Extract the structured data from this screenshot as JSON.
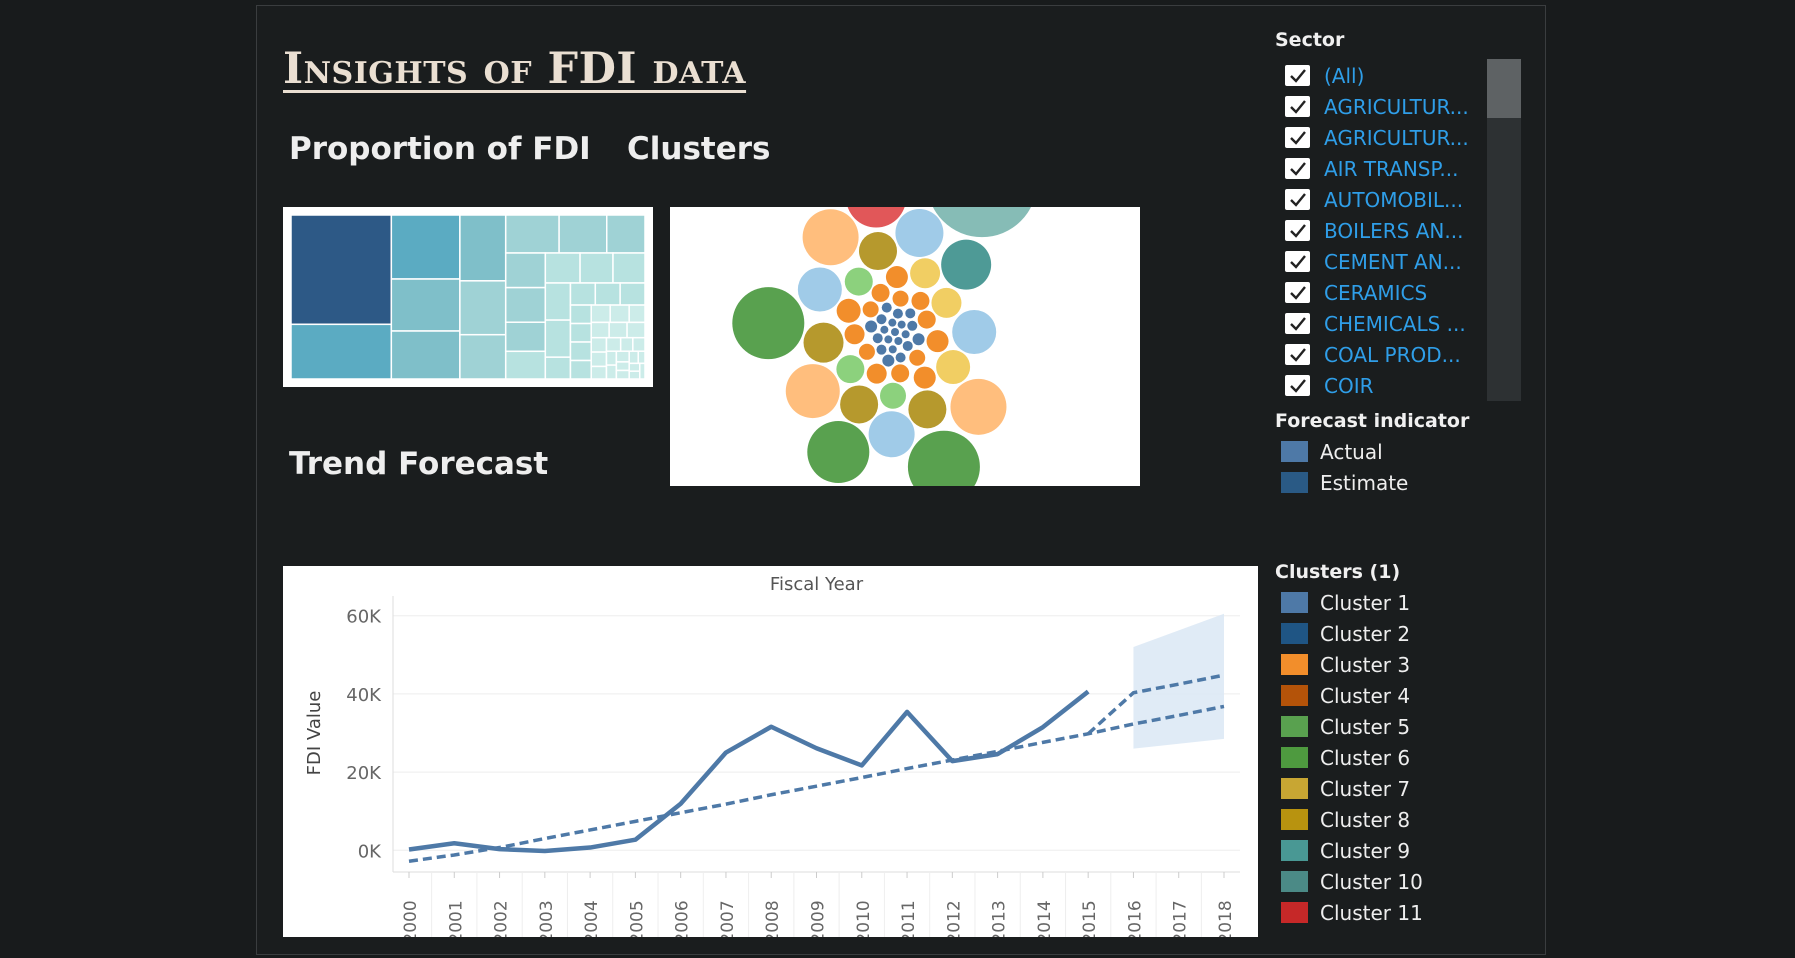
{
  "title": "Insights of FDI data",
  "sections": {
    "proportion": "Proportion of FDI",
    "clusters": "Clusters",
    "trend": "Trend Forecast"
  },
  "sector_filter": {
    "title": "Sector",
    "items": [
      {
        "label": "(All)",
        "checked": true
      },
      {
        "label": "AGRICULTUR...",
        "checked": true
      },
      {
        "label": "AGRICULTUR...",
        "checked": true
      },
      {
        "label": "AIR TRANSP...",
        "checked": true
      },
      {
        "label": "AUTOMOBIL...",
        "checked": true
      },
      {
        "label": "BOILERS AN...",
        "checked": true
      },
      {
        "label": "CEMENT AN...",
        "checked": true
      },
      {
        "label": "CERAMICS",
        "checked": true
      },
      {
        "label": "CHEMICALS ...",
        "checked": true
      },
      {
        "label": "COAL PROD...",
        "checked": true
      },
      {
        "label": "COIR",
        "checked": true
      }
    ]
  },
  "forecast_legend": {
    "title": "Forecast indicator",
    "items": [
      {
        "label": "Actual",
        "color": "#4e79a7"
      },
      {
        "label": "Estimate",
        "color": "#2a5a85"
      }
    ]
  },
  "clusters_legend": {
    "title": "Clusters (1)",
    "items": [
      {
        "label": "Cluster 1",
        "color": "#4e79a7"
      },
      {
        "label": "Cluster 2",
        "color": "#1f5584"
      },
      {
        "label": "Cluster 3",
        "color": "#f28e2b"
      },
      {
        "label": "Cluster 4",
        "color": "#b45309"
      },
      {
        "label": "Cluster 5",
        "color": "#59a14f"
      },
      {
        "label": "Cluster 6",
        "color": "#4e9a3f"
      },
      {
        "label": "Cluster 7",
        "color": "#c8a633"
      },
      {
        "label": "Cluster 8",
        "color": "#b8930f"
      },
      {
        "label": "Cluster 9",
        "color": "#499894"
      },
      {
        "label": "Cluster 10",
        "color": "#4b8a86"
      },
      {
        "label": "Cluster 11",
        "color": "#c62828"
      }
    ]
  },
  "chart_data": [
    {
      "type": "treemap",
      "title": "Proportion of FDI",
      "values": [
        40,
        20,
        13,
        16,
        11,
        12,
        9,
        7.4,
        7.4,
        6.6,
        5.3,
        5,
        5,
        4,
        4.2,
        3.8,
        3.6,
        3.5,
        3.4,
        3.4,
        2,
        2,
        2,
        2,
        1.4,
        1.4,
        1.4,
        1.4,
        1.2,
        1.2,
        1,
        1,
        1,
        1,
        0.8,
        0.8,
        0.7,
        0.7,
        0.6,
        0.6,
        0.5,
        0.5,
        0.5,
        0.4,
        0.4,
        0.4,
        0.3,
        0.3,
        0.3,
        0.3
      ],
      "palette": [
        "#2d5986",
        "#5babc2",
        "#7fbfc9",
        "#9fd2d5",
        "#b7e2e0",
        "#ccece9"
      ]
    },
    {
      "type": "packed-bubble",
      "title": "Clusters",
      "bubbles": [
        {
          "size": 55,
          "color": "#86bcb6"
        },
        {
          "size": 36,
          "color": "#59a14f"
        },
        {
          "size": 36,
          "color": "#59a14f"
        },
        {
          "size": 31,
          "color": "#59a14f"
        },
        {
          "size": 30,
          "color": "#e15759"
        },
        {
          "size": 28,
          "color": "#ffbe7d"
        },
        {
          "size": 28,
          "color": "#ffbe7d"
        },
        {
          "size": 27,
          "color": "#ffbe7d"
        },
        {
          "size": 25,
          "color": "#4e9a96"
        },
        {
          "size": 24,
          "color": "#a0cbe8"
        },
        {
          "size": 23,
          "color": "#a0cbe8"
        },
        {
          "size": 22,
          "color": "#a0cbe8"
        },
        {
          "size": 22,
          "color": "#a0cbe8"
        },
        {
          "size": 20,
          "color": "#b6992d"
        },
        {
          "size": 19,
          "color": "#b6992d"
        },
        {
          "size": 19,
          "color": "#b6992d"
        },
        {
          "size": 19,
          "color": "#b6992d"
        },
        {
          "size": 17,
          "color": "#f1ce63"
        },
        {
          "size": 15,
          "color": "#f1ce63"
        },
        {
          "size": 15,
          "color": "#f1ce63"
        },
        {
          "size": 14,
          "color": "#8cd17d"
        },
        {
          "size": 14,
          "color": "#8cd17d"
        },
        {
          "size": 13,
          "color": "#8cd17d"
        },
        {
          "size": 12,
          "color": "#f28e2b"
        },
        {
          "size": 11,
          "color": "#f28e2b"
        },
        {
          "size": 11,
          "color": "#f28e2b"
        },
        {
          "size": 11,
          "color": "#f28e2b"
        },
        {
          "size": 10,
          "color": "#f28e2b"
        },
        {
          "size": 10,
          "color": "#f28e2b"
        },
        {
          "size": 9,
          "color": "#f28e2b"
        },
        {
          "size": 9,
          "color": "#f28e2b"
        },
        {
          "size": 9,
          "color": "#f28e2b"
        },
        {
          "size": 9,
          "color": "#f28e2b"
        },
        {
          "size": 8,
          "color": "#f28e2b"
        },
        {
          "size": 8,
          "color": "#f28e2b"
        },
        {
          "size": 8,
          "color": "#f28e2b"
        },
        {
          "size": 8,
          "color": "#f28e2b"
        },
        {
          "size": 6,
          "color": "#4e79a7"
        },
        {
          "size": 6,
          "color": "#4e79a7"
        },
        {
          "size": 6,
          "color": "#4e79a7"
        },
        {
          "size": 5,
          "color": "#4e79a7"
        },
        {
          "size": 5,
          "color": "#4e79a7"
        },
        {
          "size": 5,
          "color": "#4e79a7"
        },
        {
          "size": 5,
          "color": "#4e79a7"
        },
        {
          "size": 5,
          "color": "#4e79a7"
        },
        {
          "size": 5,
          "color": "#4e79a7"
        },
        {
          "size": 5,
          "color": "#4e79a7"
        },
        {
          "size": 5,
          "color": "#4e79a7"
        },
        {
          "size": 5,
          "color": "#4e79a7"
        },
        {
          "size": 4,
          "color": "#4e79a7"
        },
        {
          "size": 4,
          "color": "#4e79a7"
        },
        {
          "size": 4,
          "color": "#4e79a7"
        },
        {
          "size": 4,
          "color": "#4e79a7"
        },
        {
          "size": 4,
          "color": "#4e79a7"
        },
        {
          "size": 4,
          "color": "#4e79a7"
        },
        {
          "size": 4,
          "color": "#4e79a7"
        },
        {
          "size": 4,
          "color": "#4e79a7"
        }
      ]
    },
    {
      "type": "line",
      "title": "Fiscal Year",
      "xlabel": "",
      "ylabel": "FDI Value",
      "categories": [
        "2000",
        "2001",
        "2002",
        "2003",
        "2004",
        "2005",
        "2006",
        "2007",
        "2008",
        "2009",
        "2010",
        "2011",
        "2012",
        "2013",
        "2014",
        "2015",
        "2016",
        "2017",
        "2018"
      ],
      "yticks": [
        {
          "value": 0,
          "label": "0K"
        },
        {
          "value": 20000,
          "label": "20K"
        },
        {
          "value": 40000,
          "label": "40K"
        },
        {
          "value": 60000,
          "label": "60K"
        }
      ],
      "ylim": [
        -3000,
        63000
      ],
      "series": [
        {
          "name": "Actual",
          "values": [
            200,
            1800,
            300,
            -200,
            700,
            2700,
            11900,
            25000,
            31600,
            26100,
            21700,
            35400,
            22800,
            24600,
            31500,
            40600,
            null,
            null,
            null
          ],
          "color": "#4e79a7"
        }
      ],
      "trend": {
        "values": [
          -2800,
          -1200,
          700,
          3000,
          5200,
          7400,
          9600,
          11800,
          14200,
          16400,
          18600,
          20900,
          23100,
          25300,
          27600,
          29800,
          32300,
          34500,
          36800
        ],
        "color": "#4e79a7"
      },
      "estimate": {
        "values": [
          null,
          null,
          null,
          null,
          null,
          null,
          null,
          null,
          null,
          null,
          null,
          null,
          null,
          null,
          null,
          null,
          40300,
          42500,
          44800
        ],
        "color": "#4e79a7"
      },
      "forecast_band": {
        "x": [
          "2016",
          "2018"
        ],
        "upper": [
          52000,
          60500
        ],
        "lower": [
          26000,
          28500
        ],
        "color": "#dbe8f4"
      },
      "grid": true
    }
  ]
}
